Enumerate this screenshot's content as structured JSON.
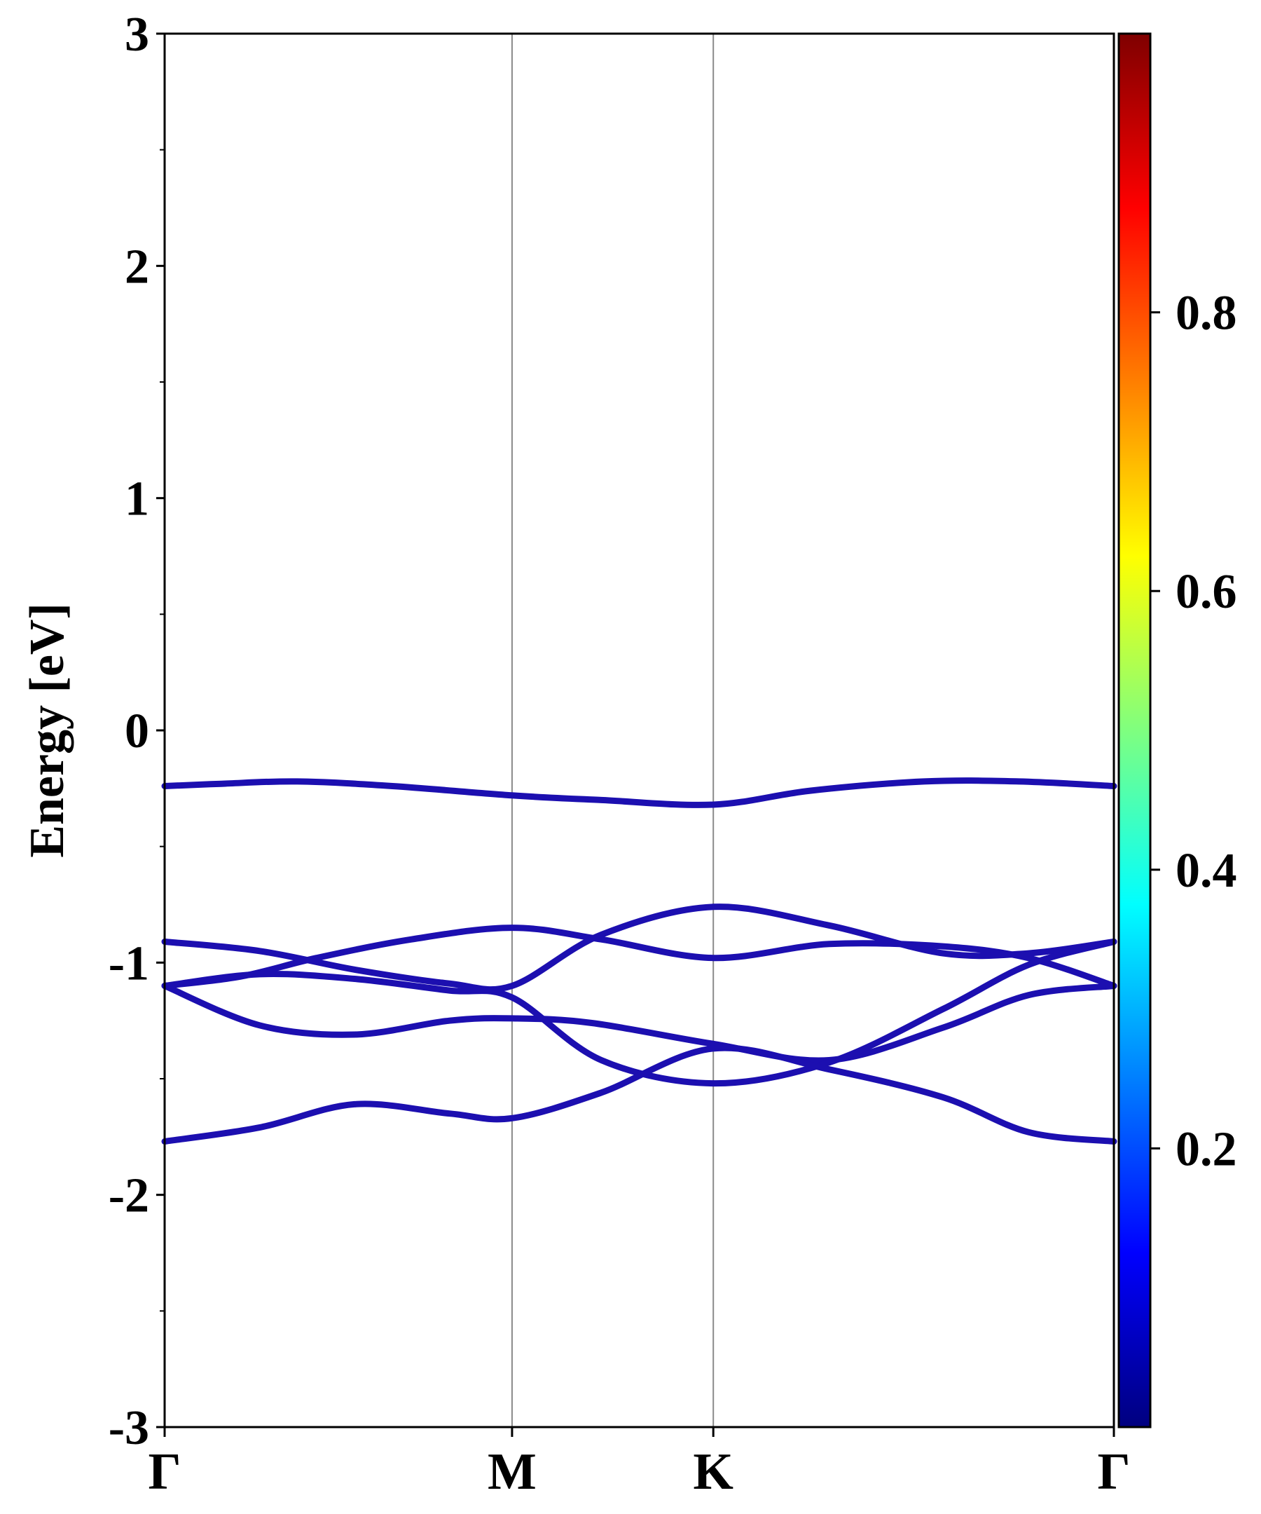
{
  "chart_data": {
    "type": "line",
    "title": "",
    "xlabel": "",
    "ylabel": "Energy [eV]",
    "ylim": [
      -3,
      3
    ],
    "yticks": [
      "3",
      "2",
      "1",
      "0",
      "-1",
      "-2",
      "-3"
    ],
    "ytick_values": [
      3,
      2,
      1,
      0,
      -1,
      -2,
      -3
    ],
    "xlim": [
      0,
      1
    ],
    "xticks": [
      {
        "label": "Γ",
        "x": 0.0
      },
      {
        "label": "M",
        "x": 0.366
      },
      {
        "label": "K",
        "x": 0.578
      },
      {
        "label": "Γ",
        "x": 1.0
      }
    ],
    "grid": false,
    "colorbar": {
      "colormap": "jet",
      "range": [
        0,
        1
      ],
      "ticks": [
        "0.2",
        "0.4",
        "0.6",
        "0.8"
      ],
      "tick_values": [
        0.2,
        0.4,
        0.6,
        0.8
      ],
      "colors": [
        "#00007f",
        "#0000ff",
        "#007fff",
        "#00ffff",
        "#7fff7f",
        "#ffff00",
        "#ff7f00",
        "#ff0000",
        "#7f0000"
      ]
    },
    "band_color": "#1c0fb0",
    "series": [
      {
        "x": [
          0.0,
          0.06,
          0.14,
          0.24,
          0.366,
          0.46,
          0.578,
          0.68,
          0.8,
          0.9,
          1.0
        ],
        "values": [
          -0.24,
          -0.23,
          -0.22,
          -0.24,
          -0.28,
          -0.3,
          -0.32,
          -0.26,
          -0.22,
          -0.22,
          -0.24
        ]
      },
      {
        "x": [
          0.0,
          0.08,
          0.16,
          0.26,
          0.366,
          0.46,
          0.578,
          0.7,
          0.82,
          0.91,
          1.0
        ],
        "values": [
          -1.1,
          -1.06,
          -0.98,
          -0.9,
          -0.85,
          -0.9,
          -0.98,
          -0.92,
          -0.93,
          -0.98,
          -1.1
        ]
      },
      {
        "x": [
          0.0,
          0.1,
          0.2,
          0.3,
          0.366,
          0.46,
          0.578,
          0.7,
          0.82,
          0.91,
          1.0
        ],
        "values": [
          -0.91,
          -0.95,
          -1.03,
          -1.09,
          -1.1,
          -0.88,
          -0.76,
          -0.84,
          -0.96,
          -0.96,
          -0.91
        ]
      },
      {
        "x": [
          0.0,
          0.1,
          0.2,
          0.3,
          0.366,
          0.45,
          0.578,
          0.7,
          0.82,
          0.91,
          1.0
        ],
        "values": [
          -1.1,
          -1.27,
          -1.31,
          -1.25,
          -1.24,
          -1.26,
          -1.35,
          -1.42,
          -1.28,
          -1.14,
          -1.1
        ]
      },
      {
        "x": [
          0.0,
          0.1,
          0.2,
          0.3,
          0.366,
          0.46,
          0.578,
          0.7,
          0.82,
          0.91,
          1.0
        ],
        "values": [
          -1.1,
          -1.05,
          -1.07,
          -1.12,
          -1.15,
          -1.42,
          -1.52,
          -1.43,
          -1.2,
          -1.01,
          -0.91
        ]
      },
      {
        "x": [
          0.0,
          0.1,
          0.2,
          0.3,
          0.366,
          0.46,
          0.578,
          0.7,
          0.82,
          0.91,
          1.0
        ],
        "values": [
          -1.77,
          -1.71,
          -1.61,
          -1.65,
          -1.67,
          -1.56,
          -1.37,
          -1.46,
          -1.58,
          -1.73,
          -1.77
        ]
      }
    ]
  }
}
